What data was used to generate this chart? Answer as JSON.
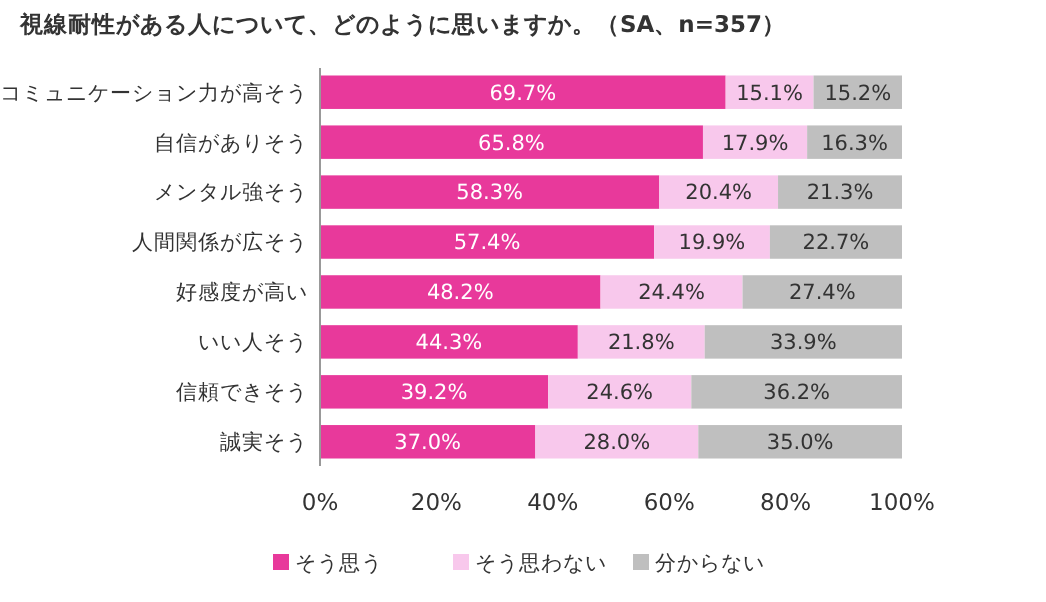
{
  "chart_data": {
    "type": "bar",
    "orientation": "horizontal",
    "stacked": true,
    "title": "視線耐性がある人について、どのように思いますか。（SA、n=357）",
    "categories": [
      "コミュニケーション力が高そう",
      "自信がありそう",
      "メンタル強そう",
      "人間関係が広そう",
      "好感度が高い",
      "いい人そう",
      "信頼できそう",
      "誠実そう"
    ],
    "series": [
      {
        "name": "そう思う",
        "color": "#e8399b",
        "values": [
          69.7,
          65.8,
          58.3,
          57.4,
          48.2,
          44.3,
          39.2,
          37.0
        ],
        "value_labels": [
          "69.7%",
          "65.8%",
          "58.3%",
          "57.4%",
          "48.2%",
          "44.3%",
          "39.2%",
          "37.0%"
        ]
      },
      {
        "name": "そう思わない",
        "color": "#f8c8ec",
        "values": [
          15.1,
          17.9,
          20.4,
          19.9,
          24.4,
          21.8,
          24.6,
          28.0
        ],
        "value_labels": [
          "15.1%",
          "17.9%",
          "20.4%",
          "19.9%",
          "24.4%",
          "21.8%",
          "24.6%",
          "28.0%"
        ]
      },
      {
        "name": "分からない",
        "color": "#bfbfbf",
        "values": [
          15.2,
          16.3,
          21.3,
          22.7,
          27.4,
          33.9,
          36.2,
          35.0
        ],
        "value_labels": [
          "15.2%",
          "16.3%",
          "21.3%",
          "22.7%",
          "27.4%",
          "33.9%",
          "36.2%",
          "35.0%"
        ]
      }
    ],
    "xlim": [
      0,
      100
    ],
    "xticks": [
      {
        "value": 0,
        "label": "0%"
      },
      {
        "value": 20,
        "label": "20%"
      },
      {
        "value": 40,
        "label": "40%"
      },
      {
        "value": 60,
        "label": "60%"
      },
      {
        "value": 80,
        "label": "80%"
      },
      {
        "value": 100,
        "label": "100%"
      }
    ],
    "legend": "bottom"
  }
}
